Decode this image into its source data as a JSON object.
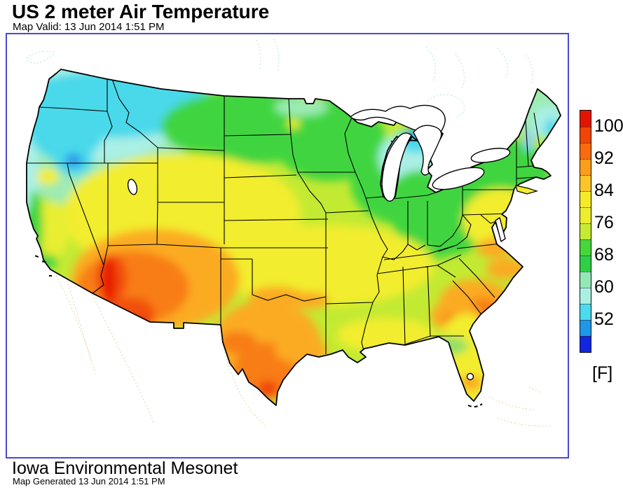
{
  "header": {
    "title": "US 2 meter Air Temperature",
    "valid": "Map Valid: 13 Jun 2014 1:51 PM"
  },
  "footer": {
    "organization": "Iowa Environmental Mesonet",
    "generated": "Map Generated 13 Jun 2014 1:51 PM"
  },
  "legend": {
    "unit_label": "[F]",
    "tick_labels": [
      "100",
      "92",
      "84",
      "76",
      "68",
      "60",
      "52"
    ],
    "segments": [
      {
        "range_f": "100-104",
        "color": "#e31400"
      },
      {
        "range_f": "96-100",
        "color": "#f04504"
      },
      {
        "range_f": "92-96",
        "color": "#f96b0e"
      },
      {
        "range_f": "88-92",
        "color": "#fb9e1b"
      },
      {
        "range_f": "84-88",
        "color": "#fbc429"
      },
      {
        "range_f": "80-84",
        "color": "#f6ea28"
      },
      {
        "range_f": "76-80",
        "color": "#eced2f"
      },
      {
        "range_f": "72-76",
        "color": "#c6ea33"
      },
      {
        "range_f": "68-72",
        "color": "#46d63c"
      },
      {
        "range_f": "64-68",
        "color": "#2ecf46"
      },
      {
        "range_f": "60-64",
        "color": "#93e7b5"
      },
      {
        "range_f": "56-60",
        "color": "#a9f0e2"
      },
      {
        "range_f": "52-56",
        "color": "#4cdaee"
      },
      {
        "range_f": "48-52",
        "color": "#1f97e8"
      },
      {
        "range_f": "44-48",
        "color": "#1126df"
      }
    ]
  },
  "map": {
    "kind": "filled-contour temperature analysis of contiguous United States",
    "frame_border_color": "#4848d8",
    "water_and_background_color": "#ffffff",
    "state_border_color": "#000000",
    "faint_neighbor_outline_colors": {
      "mexico_bahamas": "#ead9b0",
      "canada_lakes": "#bfe8dc"
    },
    "regions": [
      {
        "region": "Pacific Northwest (WA, N Idaho, W Montana)",
        "approx_temp_f": "48-62",
        "color": "#4ad9ea"
      },
      {
        "region": "SW Oregon cold spot",
        "approx_temp_f": "44-52",
        "color": "#2b96ec"
      },
      {
        "region": "Northern Plains / Upper Midwest (ND, MN, WI)",
        "approx_temp_f": "64-72",
        "color": "#3fd53f"
      },
      {
        "region": "Northern Michigan / Straits of Mackinac",
        "approx_temp_f": "48-60",
        "color": "#2b96ec"
      },
      {
        "region": "Maine and NH coast",
        "approx_temp_f": "52-64",
        "color": "#4ad9ea"
      },
      {
        "region": "Great Basin and Central Plains (NV, UT, KS, OK)",
        "approx_temp_f": "76-84",
        "color": "#f2ed2d"
      },
      {
        "region": "Ohio Valley and Appalachians",
        "approx_temp_f": "68-76",
        "color": "#3fd53f"
      },
      {
        "region": "Mid-Atlantic (VA, MD, NJ)",
        "approx_temp_f": "80-88",
        "color": "#f2ed2d"
      },
      {
        "region": "Southeast coastal plain (GA, SC)",
        "approx_temp_f": "88-96",
        "color": "#fbab20"
      },
      {
        "region": "Florida peninsula",
        "approx_temp_f": "80-92",
        "color": "#f2ed2d"
      },
      {
        "region": "South Texas",
        "approx_temp_f": "92-100",
        "color": "#f87d18"
      },
      {
        "region": "Desert Southwest (W Arizona, SE California)",
        "approx_temp_f": "96-104",
        "color": "#e81c00"
      },
      {
        "region": "New Orleans area cool spot",
        "approx_temp_f": "64-72",
        "color": "#3fd53f"
      }
    ]
  }
}
